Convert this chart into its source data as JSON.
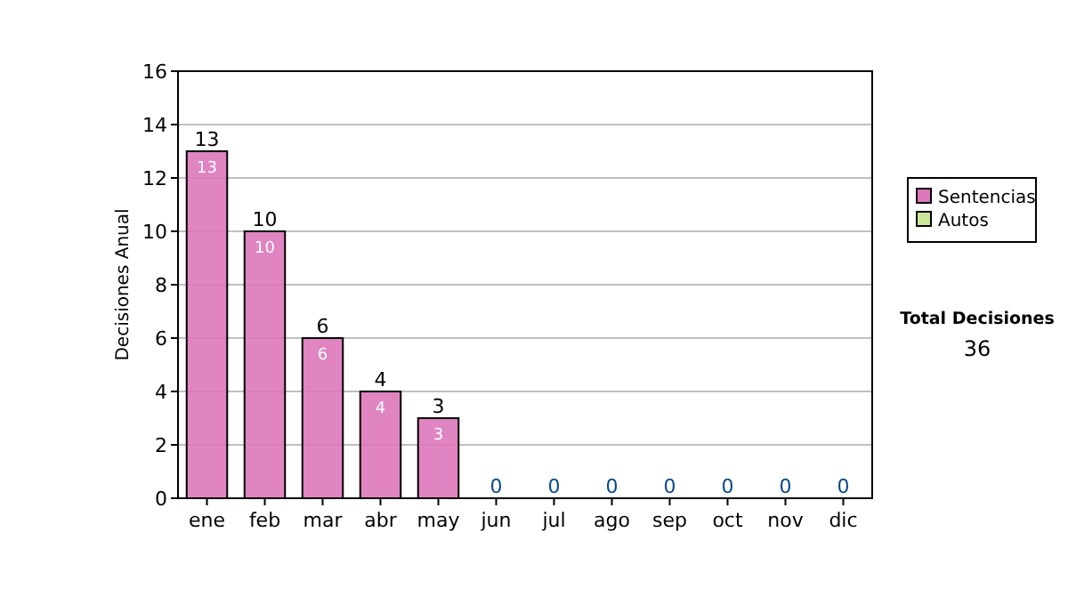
{
  "chart_data": {
    "type": "bar",
    "stacked": true,
    "ylabel": "Decisiones Anual",
    "categories": [
      "ene",
      "feb",
      "mar",
      "abr",
      "may",
      "jun",
      "jul",
      "ago",
      "sep",
      "oct",
      "nov",
      "dic"
    ],
    "series": [
      {
        "name": "Sentencias",
        "color": "#dd77bb",
        "values": [
          13,
          10,
          6,
          4,
          3,
          0,
          0,
          0,
          0,
          0,
          0,
          0
        ],
        "value_labels": [
          "13",
          "10",
          "6",
          "4",
          "3",
          null,
          null,
          null,
          null,
          null,
          null,
          null
        ]
      },
      {
        "name": "Autos",
        "color": "#cce699",
        "values": [
          0,
          0,
          0,
          0,
          0,
          0,
          0,
          0,
          0,
          0,
          0,
          0
        ]
      }
    ],
    "totals": [
      "13",
      "10",
      "6",
      "4",
      "3",
      "0",
      "0",
      "0",
      "0",
      "0",
      "0",
      "0"
    ],
    "ylim": [
      0,
      16
    ],
    "yticks": [
      0,
      2,
      4,
      6,
      8,
      10,
      12,
      14,
      16
    ],
    "grid": "y",
    "legend": "right",
    "annotations": [
      "Total Decisiones",
      "36"
    ]
  }
}
